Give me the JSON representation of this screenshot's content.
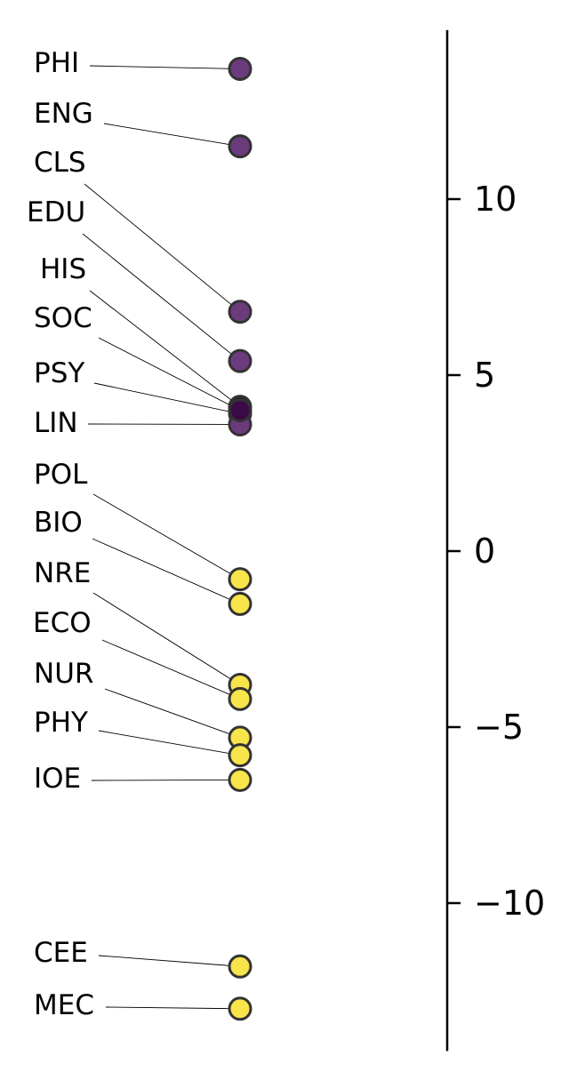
{
  "chart_data": {
    "type": "scatter",
    "title": "",
    "xlabel": "",
    "ylabel": "",
    "ylim": [
      -14.2,
      14.8
    ],
    "yticks": [
      10,
      5,
      0,
      -5,
      -10
    ],
    "ytick_labels": [
      "10",
      "5",
      "0",
      "−5",
      "−10"
    ],
    "grid": false,
    "legend": "none",
    "colors": {
      "positive": "#6c3b7e",
      "dark": "#3b0a46",
      "negative": "#f8e44b",
      "edge": "#333333",
      "axis": "#000000",
      "leader": "#000000"
    },
    "points": [
      {
        "label": "PHI",
        "value": 13.7
      },
      {
        "label": "ENG",
        "value": 11.5
      },
      {
        "label": "CLS",
        "value": 6.8
      },
      {
        "label": "EDU",
        "value": 5.4
      },
      {
        "label": "HIS",
        "value": 4.1
      },
      {
        "label": "SOC",
        "value": 4.0
      },
      {
        "label": "PSY",
        "value": 3.9
      },
      {
        "label": "LIN",
        "value": 3.6
      },
      {
        "label": "POL",
        "value": -0.8
      },
      {
        "label": "BIO",
        "value": -1.5
      },
      {
        "label": "NRE",
        "value": -3.8
      },
      {
        "label": "ECO",
        "value": -4.2
      },
      {
        "label": "NUR",
        "value": -5.3
      },
      {
        "label": "PHY",
        "value": -5.8
      },
      {
        "label": "IOE",
        "value": -6.5
      },
      {
        "label": "CEE",
        "value": -11.8
      },
      {
        "label": "MEC",
        "value": -13.0
      }
    ]
  }
}
